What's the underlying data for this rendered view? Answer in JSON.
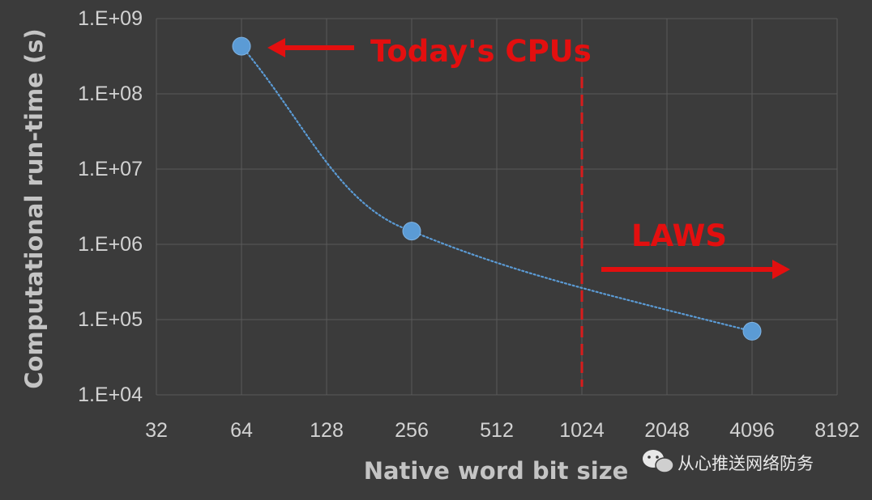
{
  "chart_data": {
    "type": "scatter",
    "xlabel": "Native word bit size",
    "ylabel": "Computational run-time (s)",
    "x_scale": "log2",
    "y_scale": "log10",
    "xlim": [
      32,
      8192
    ],
    "ylim": [
      10000,
      1000000000
    ],
    "x_ticks": [
      "32",
      "64",
      "128",
      "256",
      "512",
      "1024",
      "2048",
      "4096",
      "8192"
    ],
    "y_ticks": [
      "1.E+04",
      "1.E+05",
      "1.E+06",
      "1.E+07",
      "1.E+08",
      "1.E+09"
    ],
    "grid": true,
    "series": [
      {
        "x": [
          64,
          256,
          4096
        ],
        "y": [
          430000000,
          1500000,
          70000
        ],
        "color": "#5b9bd5",
        "trendline": "dotted"
      }
    ],
    "annotations": [
      {
        "text": "Today's CPUs",
        "arrow": "left",
        "points_to": "x = 64"
      },
      {
        "text": "LAWS",
        "arrow": "right"
      }
    ],
    "reference_line": {
      "x": 1024,
      "style": "dashed",
      "color": "#d81c1c"
    },
    "annotation_color": "#e30f0f"
  },
  "watermark": {
    "text": "从心推送网络防务",
    "icon": "wechat-icon"
  }
}
